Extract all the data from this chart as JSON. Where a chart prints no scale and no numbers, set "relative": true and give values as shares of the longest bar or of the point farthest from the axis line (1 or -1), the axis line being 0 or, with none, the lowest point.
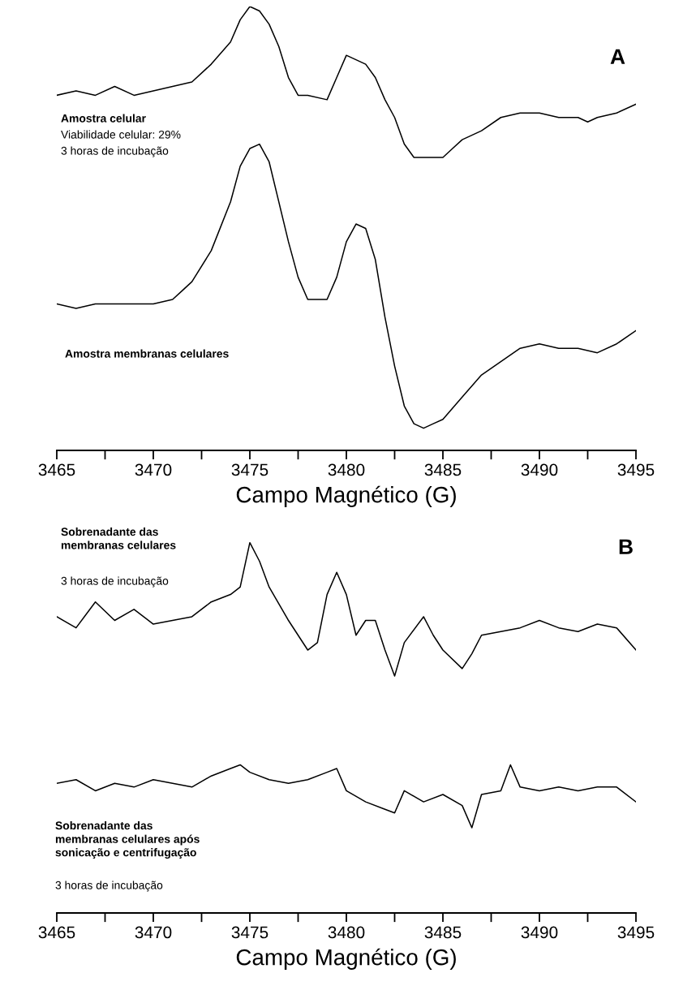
{
  "chart_data": [
    {
      "type": "line",
      "relative": true,
      "tick_labels": "x",
      "xlabel": "Campo Magnético (G)",
      "xlim": [
        3465,
        3495
      ],
      "xticks": [
        3465,
        {
          "value": 3467.5,
          "label": null
        },
        3470,
        {
          "value": 3472.5,
          "label": null
        },
        3475,
        {
          "value": 3477.5,
          "label": null
        },
        3480,
        {
          "value": 3482.5,
          "label": null
        },
        3485,
        {
          "value": 3487.5,
          "label": null
        },
        3490,
        {
          "value": 3492.5,
          "label": null
        },
        3495
      ],
      "annotations": [
        "Amostra celular",
        "Viabilidade celular: 29%",
        "3 horas de incubação",
        "Amostra membranas celulares",
        "A"
      ],
      "series": [
        {
          "color": "#000000",
          "x": [
            3465,
            3466,
            3467,
            3468,
            3469,
            3470,
            3471,
            3472,
            3473,
            3474,
            3474.5,
            3475,
            3475.5,
            3476,
            3476.5,
            3477,
            3477.5,
            3478,
            3479,
            3479.5,
            3480,
            3480.5,
            3481,
            3481.5,
            3482,
            3482.5,
            3483,
            3483.5,
            3484,
            3485,
            3485.5,
            3486,
            3487,
            3488,
            3489,
            3490,
            3491,
            3492,
            3492.5,
            3493,
            3494,
            3495
          ],
          "values": [
            0.8,
            0.81,
            0.8,
            0.82,
            0.8,
            0.81,
            0.82,
            0.83,
            0.87,
            0.92,
            0.97,
            1.0,
            0.99,
            0.96,
            0.91,
            0.84,
            0.8,
            0.8,
            0.79,
            0.84,
            0.89,
            0.88,
            0.87,
            0.84,
            0.79,
            0.75,
            0.69,
            0.66,
            0.66,
            0.66,
            0.68,
            0.7,
            0.72,
            0.75,
            0.76,
            0.76,
            0.75,
            0.75,
            0.74,
            0.75,
            0.76,
            0.78
          ]
        },
        {
          "color": "#000000",
          "x": [
            3465,
            3466,
            3467,
            3468,
            3469,
            3470,
            3471,
            3471.5,
            3472,
            3473,
            3474,
            3474.5,
            3475,
            3475.5,
            3476,
            3476.5,
            3477,
            3477.5,
            3478,
            3479,
            3479.5,
            3480,
            3480.5,
            3481,
            3481.5,
            3482,
            3482.5,
            3483,
            3483.5,
            3484,
            3484.5,
            3485,
            3486,
            3487,
            3488,
            3489,
            3490,
            3491,
            3492,
            3493,
            3494,
            3495
          ],
          "values": [
            0.33,
            0.32,
            0.33,
            0.33,
            0.33,
            0.33,
            0.34,
            0.36,
            0.38,
            0.45,
            0.56,
            0.64,
            0.68,
            0.69,
            0.65,
            0.56,
            0.47,
            0.39,
            0.34,
            0.34,
            0.39,
            0.47,
            0.51,
            0.5,
            0.43,
            0.3,
            0.19,
            0.1,
            0.06,
            0.05,
            0.06,
            0.07,
            0.12,
            0.17,
            0.2,
            0.23,
            0.24,
            0.23,
            0.23,
            0.22,
            0.24,
            0.27
          ]
        }
      ]
    },
    {
      "type": "line",
      "relative": true,
      "tick_labels": "x",
      "xlabel": "Campo Magnético (G)",
      "xlim": [
        3465,
        3495
      ],
      "xticks": [
        3465,
        {
          "value": 3467.5,
          "label": null
        },
        3470,
        {
          "value": 3472.5,
          "label": null
        },
        3475,
        {
          "value": 3477.5,
          "label": null
        },
        3480,
        {
          "value": 3482.5,
          "label": null
        },
        3485,
        {
          "value": 3487.5,
          "label": null
        },
        3490,
        {
          "value": 3492.5,
          "label": null
        },
        3495
      ],
      "annotations": [
        "Sobrenadante das\nmembranas celulares",
        "3 horas de incubação",
        "Sobrenadante das\nmembranas celulares após\nsonicação e centrifugação",
        "3 horas de incubação",
        "B"
      ],
      "series": [
        {
          "color": "#000000",
          "x": [
            3465,
            3466,
            3467,
            3468,
            3469,
            3470,
            3471,
            3472,
            3473,
            3474,
            3474.5,
            3475,
            3475.5,
            3476,
            3477,
            3478,
            3478.5,
            3479,
            3479.5,
            3480,
            3480.5,
            3481,
            3481.5,
            3482,
            3482.5,
            3483,
            3484,
            3484.5,
            3485,
            3486,
            3486.5,
            3487,
            3488,
            3489,
            3490,
            3491,
            3492,
            3493,
            3494,
            3495
          ],
          "values": [
            0.8,
            0.77,
            0.84,
            0.79,
            0.82,
            0.78,
            0.79,
            0.8,
            0.84,
            0.86,
            0.88,
            1.0,
            0.95,
            0.88,
            0.79,
            0.71,
            0.73,
            0.86,
            0.92,
            0.86,
            0.75,
            0.79,
            0.79,
            0.71,
            0.64,
            0.73,
            0.8,
            0.75,
            0.71,
            0.66,
            0.7,
            0.75,
            0.76,
            0.77,
            0.79,
            0.77,
            0.76,
            0.78,
            0.77,
            0.71
          ]
        },
        {
          "color": "#000000",
          "x": [
            3465,
            3466,
            3467,
            3468,
            3469,
            3470,
            3471,
            3472,
            3473,
            3474,
            3474.5,
            3475,
            3476,
            3477,
            3478,
            3479,
            3479.5,
            3480,
            3481,
            3482,
            3482.5,
            3483,
            3484,
            3485,
            3486,
            3486.5,
            3487,
            3488,
            3488.5,
            3489,
            3490,
            3491,
            3492,
            3493,
            3494,
            3495
          ],
          "values": [
            0.35,
            0.36,
            0.33,
            0.35,
            0.34,
            0.36,
            0.35,
            0.34,
            0.37,
            0.39,
            0.4,
            0.38,
            0.36,
            0.35,
            0.36,
            0.38,
            0.39,
            0.33,
            0.3,
            0.28,
            0.27,
            0.33,
            0.3,
            0.32,
            0.29,
            0.23,
            0.32,
            0.33,
            0.4,
            0.34,
            0.33,
            0.34,
            0.33,
            0.34,
            0.34,
            0.3
          ]
        }
      ]
    }
  ]
}
